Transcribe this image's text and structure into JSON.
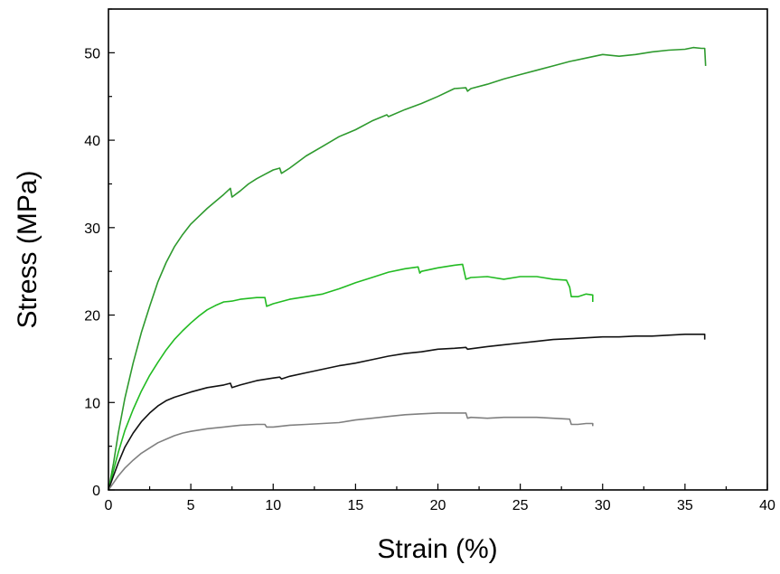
{
  "chart_data": {
    "type": "line",
    "xlabel": "Strain (%)",
    "ylabel": "Stress (MPa)",
    "xlim": [
      0,
      40
    ],
    "ylim": [
      0,
      55
    ],
    "xticks": [
      0,
      5,
      10,
      15,
      20,
      25,
      30,
      35,
      40
    ],
    "yticks": [
      0,
      10,
      20,
      30,
      40,
      50
    ],
    "grid": false,
    "series": [
      {
        "color": "#2e9a2e",
        "points": [
          [
            0,
            0
          ],
          [
            0.3,
            3
          ],
          [
            0.6,
            6.5
          ],
          [
            1,
            10.5
          ],
          [
            1.5,
            14.5
          ],
          [
            2,
            18
          ],
          [
            2.5,
            21
          ],
          [
            3,
            23.8
          ],
          [
            3.5,
            26
          ],
          [
            4,
            27.8
          ],
          [
            4.5,
            29.2
          ],
          [
            5,
            30.4
          ],
          [
            5.5,
            31.3
          ],
          [
            6,
            32.2
          ],
          [
            6.5,
            33
          ],
          [
            7,
            33.8
          ],
          [
            7.4,
            34.5
          ],
          [
            7.5,
            33.5
          ],
          [
            8,
            34.2
          ],
          [
            8.5,
            35
          ],
          [
            9,
            35.6
          ],
          [
            9.5,
            36.1
          ],
          [
            10,
            36.6
          ],
          [
            10.4,
            36.8
          ],
          [
            10.5,
            36.2
          ],
          [
            11,
            36.8
          ],
          [
            12,
            38.2
          ],
          [
            13,
            39.3
          ],
          [
            14,
            40.4
          ],
          [
            15,
            41.2
          ],
          [
            16,
            42.2
          ],
          [
            16.9,
            42.9
          ],
          [
            17,
            42.7
          ],
          [
            18,
            43.5
          ],
          [
            19,
            44.2
          ],
          [
            20,
            45
          ],
          [
            21,
            45.9
          ],
          [
            21.7,
            46
          ],
          [
            21.8,
            45.6
          ],
          [
            22,
            45.9
          ],
          [
            23,
            46.4
          ],
          [
            24,
            47
          ],
          [
            25,
            47.5
          ],
          [
            26,
            48
          ],
          [
            27,
            48.5
          ],
          [
            28,
            49
          ],
          [
            29,
            49.4
          ],
          [
            30,
            49.8
          ],
          [
            31,
            49.6
          ],
          [
            32,
            49.8
          ],
          [
            33,
            50.1
          ],
          [
            34,
            50.3
          ],
          [
            35,
            50.4
          ],
          [
            35.5,
            50.6
          ],
          [
            36,
            50.5
          ],
          [
            36.2,
            50.5
          ],
          [
            36.25,
            48.5
          ]
        ]
      },
      {
        "color": "#22bb22",
        "points": [
          [
            0,
            0
          ],
          [
            0.3,
            2.2
          ],
          [
            0.6,
            4.3
          ],
          [
            1,
            6.8
          ],
          [
            1.5,
            9.2
          ],
          [
            2,
            11.3
          ],
          [
            2.5,
            13.1
          ],
          [
            3,
            14.6
          ],
          [
            3.5,
            16
          ],
          [
            4,
            17.2
          ],
          [
            4.5,
            18.2
          ],
          [
            5,
            19.1
          ],
          [
            5.5,
            19.9
          ],
          [
            6,
            20.6
          ],
          [
            6.5,
            21.1
          ],
          [
            7,
            21.5
          ],
          [
            7.5,
            21.6
          ],
          [
            8,
            21.8
          ],
          [
            9,
            22
          ],
          [
            9.5,
            22
          ],
          [
            9.6,
            21
          ],
          [
            10,
            21.3
          ],
          [
            11,
            21.8
          ],
          [
            12,
            22.1
          ],
          [
            13,
            22.4
          ],
          [
            14,
            23
          ],
          [
            15,
            23.7
          ],
          [
            16,
            24.3
          ],
          [
            17,
            24.9
          ],
          [
            18,
            25.3
          ],
          [
            18.8,
            25.5
          ],
          [
            18.9,
            24.8
          ],
          [
            19,
            25
          ],
          [
            20,
            25.4
          ],
          [
            21,
            25.7
          ],
          [
            21.5,
            25.8
          ],
          [
            21.7,
            24.1
          ],
          [
            22,
            24.3
          ],
          [
            23,
            24.4
          ],
          [
            24,
            24.1
          ],
          [
            25,
            24.4
          ],
          [
            26,
            24.4
          ],
          [
            27,
            24.1
          ],
          [
            27.8,
            24
          ],
          [
            28,
            23.2
          ],
          [
            28.1,
            22.1
          ],
          [
            28.5,
            22.1
          ],
          [
            29,
            22.4
          ],
          [
            29.4,
            22.3
          ],
          [
            29.4,
            21.5
          ]
        ]
      },
      {
        "color": "#111111",
        "points": [
          [
            0,
            0
          ],
          [
            0.3,
            1.6
          ],
          [
            0.6,
            3.1
          ],
          [
            1,
            4.9
          ],
          [
            1.5,
            6.5
          ],
          [
            2,
            7.8
          ],
          [
            2.5,
            8.8
          ],
          [
            3,
            9.6
          ],
          [
            3.5,
            10.2
          ],
          [
            4,
            10.6
          ],
          [
            5,
            11.2
          ],
          [
            6,
            11.7
          ],
          [
            7,
            12
          ],
          [
            7.4,
            12.2
          ],
          [
            7.5,
            11.7
          ],
          [
            8,
            12
          ],
          [
            9,
            12.5
          ],
          [
            10,
            12.8
          ],
          [
            10.4,
            12.9
          ],
          [
            10.5,
            12.7
          ],
          [
            11,
            13
          ],
          [
            12,
            13.4
          ],
          [
            13,
            13.8
          ],
          [
            14,
            14.2
          ],
          [
            15,
            14.5
          ],
          [
            16,
            14.9
          ],
          [
            17,
            15.3
          ],
          [
            18,
            15.6
          ],
          [
            19,
            15.8
          ],
          [
            20,
            16.1
          ],
          [
            21,
            16.2
          ],
          [
            21.7,
            16.3
          ],
          [
            21.8,
            16.1
          ],
          [
            23,
            16.4
          ],
          [
            24,
            16.6
          ],
          [
            25,
            16.8
          ],
          [
            26,
            17
          ],
          [
            27,
            17.2
          ],
          [
            28,
            17.3
          ],
          [
            29,
            17.4
          ],
          [
            30,
            17.5
          ],
          [
            31,
            17.5
          ],
          [
            32,
            17.6
          ],
          [
            33,
            17.6
          ],
          [
            34,
            17.7
          ],
          [
            35,
            17.8
          ],
          [
            35.5,
            17.8
          ],
          [
            36.2,
            17.8
          ],
          [
            36.2,
            17.2
          ]
        ]
      },
      {
        "color": "#808080",
        "points": [
          [
            0,
            0
          ],
          [
            0.3,
            0.8
          ],
          [
            0.6,
            1.6
          ],
          [
            1,
            2.5
          ],
          [
            1.5,
            3.4
          ],
          [
            2,
            4.2
          ],
          [
            2.5,
            4.8
          ],
          [
            3,
            5.4
          ],
          [
            3.5,
            5.8
          ],
          [
            4,
            6.2
          ],
          [
            4.5,
            6.5
          ],
          [
            5,
            6.7
          ],
          [
            6,
            7
          ],
          [
            7,
            7.2
          ],
          [
            8,
            7.4
          ],
          [
            9,
            7.5
          ],
          [
            9.5,
            7.5
          ],
          [
            9.6,
            7.2
          ],
          [
            10,
            7.2
          ],
          [
            11,
            7.4
          ],
          [
            12,
            7.5
          ],
          [
            13,
            7.6
          ],
          [
            14,
            7.7
          ],
          [
            15,
            8
          ],
          [
            16,
            8.2
          ],
          [
            17,
            8.4
          ],
          [
            18,
            8.6
          ],
          [
            19,
            8.7
          ],
          [
            20,
            8.8
          ],
          [
            21,
            8.8
          ],
          [
            21.7,
            8.8
          ],
          [
            21.8,
            8.2
          ],
          [
            22,
            8.3
          ],
          [
            23,
            8.2
          ],
          [
            24,
            8.3
          ],
          [
            25,
            8.3
          ],
          [
            26,
            8.3
          ],
          [
            27,
            8.2
          ],
          [
            28,
            8.1
          ],
          [
            28.1,
            7.5
          ],
          [
            28.5,
            7.5
          ],
          [
            29,
            7.6
          ],
          [
            29.4,
            7.6
          ],
          [
            29.4,
            7.3
          ]
        ]
      }
    ]
  }
}
